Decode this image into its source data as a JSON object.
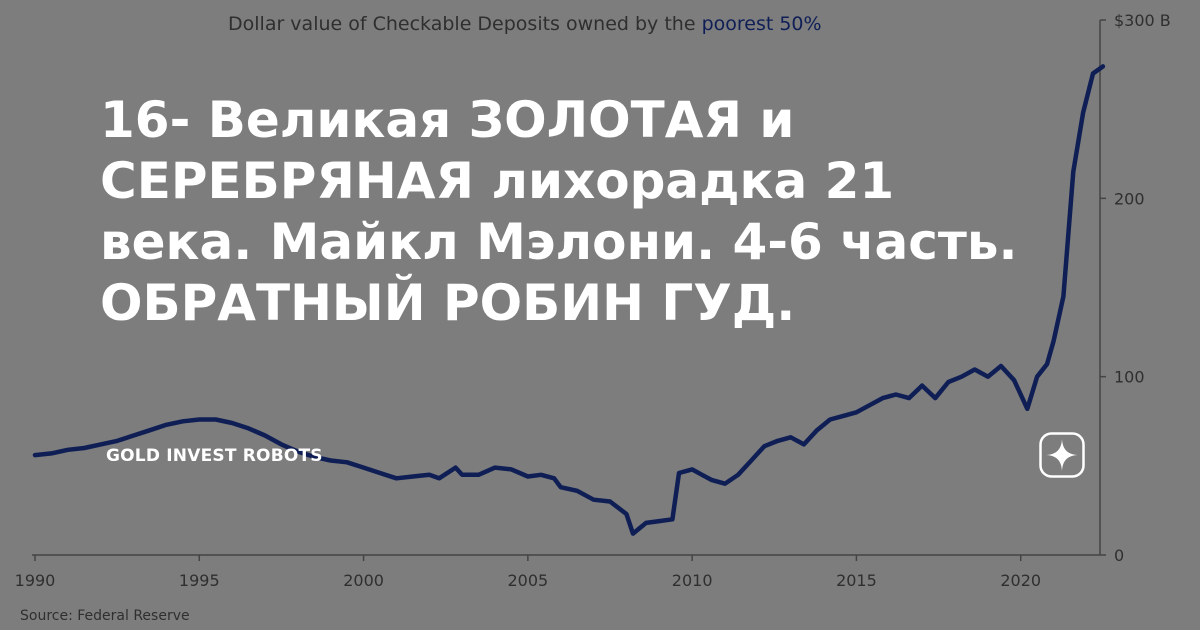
{
  "chart_data": {
    "type": "line",
    "title": "Dollar value of Checkable Deposits owned by the",
    "title_highlight": "poorest 50%",
    "source": "Source: Federal Reserve",
    "x_tick_labels": [
      "1990",
      "1995",
      "2000",
      "2005",
      "2010",
      "2015",
      "2020"
    ],
    "y_tick_labels": [
      "$300 B",
      "200",
      "100",
      "0"
    ],
    "xlim": [
      1990,
      2022.2
    ],
    "ylim": [
      0,
      300
    ],
    "y_axis_side": "right",
    "grid": false,
    "series": [
      {
        "color": "#0f1f56",
        "points": [
          [
            1990.0,
            56
          ],
          [
            1990.5,
            57
          ],
          [
            1991.0,
            59
          ],
          [
            1991.5,
            60
          ],
          [
            1992.0,
            62
          ],
          [
            1992.5,
            64
          ],
          [
            1993.0,
            67
          ],
          [
            1993.5,
            70
          ],
          [
            1994.0,
            73
          ],
          [
            1994.5,
            75
          ],
          [
            1995.0,
            76
          ],
          [
            1995.5,
            76
          ],
          [
            1996.0,
            74
          ],
          [
            1996.5,
            71
          ],
          [
            1997.0,
            67
          ],
          [
            1997.5,
            62
          ],
          [
            1998.0,
            58
          ],
          [
            1998.5,
            55
          ],
          [
            1999.0,
            53
          ],
          [
            1999.5,
            52
          ],
          [
            2000.0,
            49
          ],
          [
            2000.5,
            46
          ],
          [
            2001.0,
            43
          ],
          [
            2001.5,
            44
          ],
          [
            2002.0,
            45
          ],
          [
            2002.3,
            43
          ],
          [
            2002.8,
            49
          ],
          [
            2003.0,
            45
          ],
          [
            2003.5,
            45
          ],
          [
            2004.0,
            49
          ],
          [
            2004.5,
            48
          ],
          [
            2005.0,
            44
          ],
          [
            2005.4,
            45
          ],
          [
            2005.8,
            43
          ],
          [
            2006.0,
            38
          ],
          [
            2006.5,
            36
          ],
          [
            2007.0,
            31
          ],
          [
            2007.5,
            30
          ],
          [
            2008.0,
            23
          ],
          [
            2008.2,
            12
          ],
          [
            2008.6,
            18
          ],
          [
            2009.0,
            19
          ],
          [
            2009.4,
            20
          ],
          [
            2009.6,
            46
          ],
          [
            2010.0,
            48
          ],
          [
            2010.3,
            45
          ],
          [
            2010.6,
            42
          ],
          [
            2011.0,
            40
          ],
          [
            2011.4,
            45
          ],
          [
            2011.8,
            53
          ],
          [
            2012.2,
            61
          ],
          [
            2012.6,
            64
          ],
          [
            2013.0,
            66
          ],
          [
            2013.4,
            62
          ],
          [
            2013.8,
            70
          ],
          [
            2014.2,
            76
          ],
          [
            2014.6,
            78
          ],
          [
            2015.0,
            80
          ],
          [
            2015.4,
            84
          ],
          [
            2015.8,
            88
          ],
          [
            2016.2,
            90
          ],
          [
            2016.6,
            88
          ],
          [
            2017.0,
            95
          ],
          [
            2017.4,
            88
          ],
          [
            2017.8,
            97
          ],
          [
            2018.2,
            100
          ],
          [
            2018.6,
            104
          ],
          [
            2019.0,
            100
          ],
          [
            2019.4,
            106
          ],
          [
            2019.8,
            98
          ],
          [
            2020.2,
            82
          ],
          [
            2020.5,
            100
          ],
          [
            2020.8,
            107
          ],
          [
            2021.0,
            120
          ],
          [
            2021.3,
            145
          ],
          [
            2021.6,
            215
          ],
          [
            2021.9,
            248
          ],
          [
            2022.2,
            270
          ],
          [
            2022.5,
            274
          ]
        ]
      }
    ]
  },
  "headline": {
    "line1": "16- Великая ЗОЛОТАЯ и",
    "line2": "СЕРЕБРЯНАЯ лихорадка 21",
    "line3": "века. Майкл Мэлони. 4-6 часть.",
    "line4": "ОБРАТНЫЙ РОБИН ГУД."
  },
  "channel_name": "GOLD INVEST ROBOTS",
  "icons": {
    "channel_logo": "zen-star-icon"
  }
}
